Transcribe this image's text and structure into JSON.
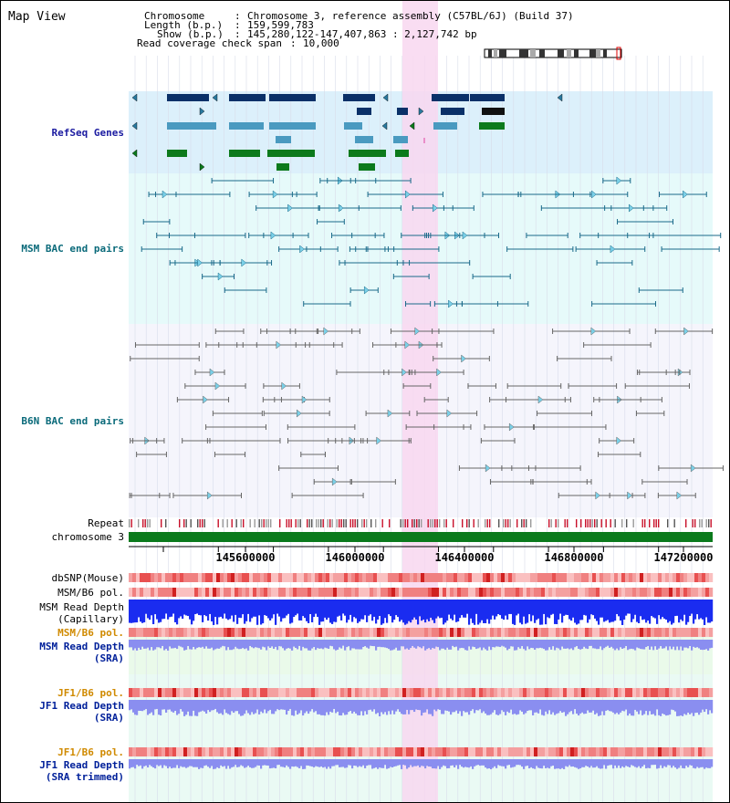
{
  "page": {
    "title": "Map View"
  },
  "header": {
    "chromosome_key": "Chromosome",
    "chromosome_value": "Chromosome 3, reference assembly (C57BL/6J) (Build 37)",
    "length_key": "Length (b.p.)",
    "length_value": "159,599,783",
    "show_key": "Show (b.p.)",
    "show_value": "145,280,122-147,407,863 : 2,127,742 bp",
    "coverage_key": "Read coverage check span",
    "coverage_value": "10,000"
  },
  "tracks": {
    "refseq": "RefSeq Genes",
    "msm_bac": "MSM BAC end pairs",
    "b6n_bac": "B6N BAC end pairs",
    "repeat": "Repeat",
    "chromosome": "chromosome 3",
    "dbsnp": "dbSNP(Mouse)",
    "msm_b6_pol_1": "MSM/B6 pol.",
    "msm_read_depth_cap_1": "MSM Read Depth",
    "msm_read_depth_cap_2": "(Capillary)",
    "msm_b6_pol_2": "MSM/B6 pol.",
    "msm_read_depth_sra_1": "MSM Read Depth",
    "msm_read_depth_sra_2": "(SRA)",
    "jf1_b6_pol_1": "JF1/B6 pol.",
    "jf1_read_depth_sra_1": "JF1 Read Depth",
    "jf1_read_depth_sra_2": "(SRA)",
    "jf1_b6_pol_2": "JF1/B6 pol.",
    "jf1_read_depth_trim_1": "JF1 Read Depth",
    "jf1_read_depth_trim_2": "(SRA trimmed)"
  },
  "axis": {
    "ticks": [
      "145600000",
      "146000000",
      "146400000",
      "146800000",
      "147200000"
    ]
  },
  "colors": {
    "refseq_bg": "#dcf0fb",
    "msm_bg": "#e6fafa",
    "b6n_bg": "#f5f5fc",
    "highlight": "#f8d7f0",
    "navy": "#0a3068",
    "teal": "#4a9ac0",
    "green": "#0c7a1c",
    "msm_pair": "#1a6a8a",
    "b6n_pair": "#666666",
    "chromosome": "#0b7a1c",
    "depth_capillary": "#1a2cf0",
    "depth_sra": "#8a8ef0",
    "label_blue": "#1a1aa0",
    "label_teal": "#0a6a7a",
    "label_orange": "#d08a00",
    "label_navy": "#00209a"
  }
}
